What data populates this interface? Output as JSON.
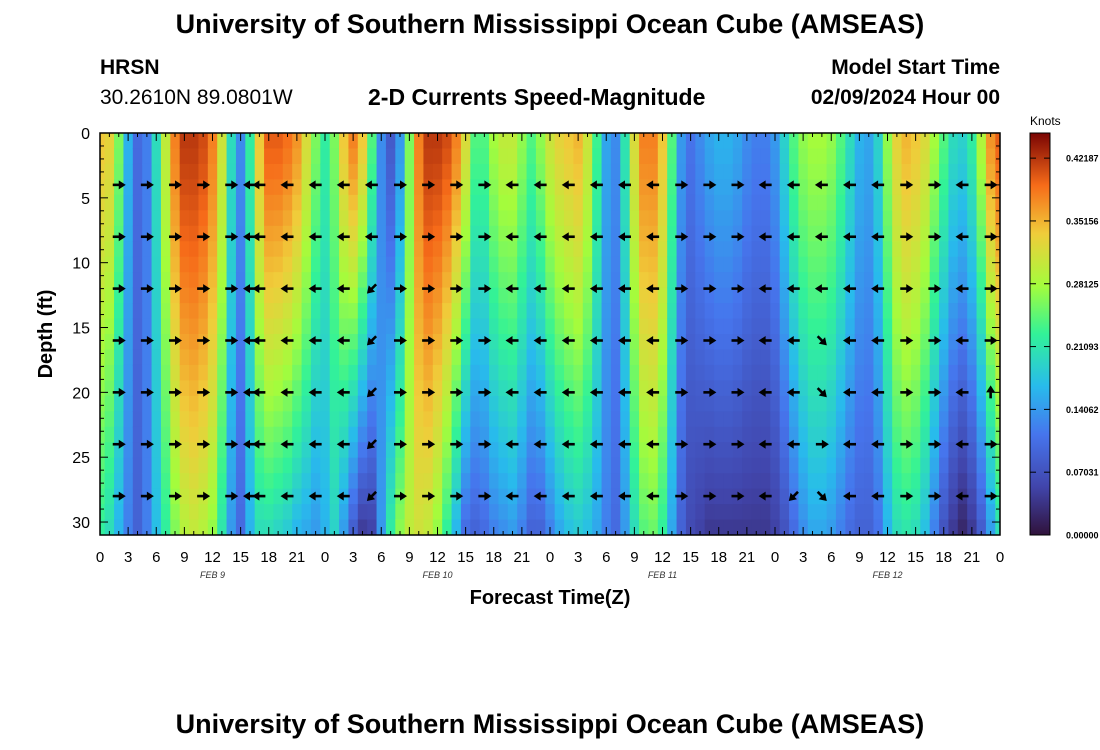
{
  "header": {
    "title": "University of Southern Mississippi Ocean Cube (AMSEAS)",
    "station": "HRSN",
    "coords": "30.2610N  89.0801W",
    "subtitle": "2-D Currents Speed-Magnitude",
    "model_start_label": "Model Start Time",
    "model_start_value": "02/09/2024 Hour 00"
  },
  "footer": {
    "title": "University of Southern Mississippi Ocean Cube (AMSEAS)"
  },
  "chart_data": {
    "type": "heatmap",
    "xlabel": "Forecast Time(Z)",
    "ylabel": "Depth (ft)",
    "x_range_hours": [
      0,
      96
    ],
    "ylim": [
      0,
      31
    ],
    "x_ticks": [
      "0",
      "3",
      "6",
      "9",
      "12",
      "15",
      "18",
      "21",
      "0",
      "3",
      "6",
      "9",
      "12",
      "15",
      "18",
      "21",
      "0",
      "3",
      "6",
      "9",
      "12",
      "15",
      "18",
      "21",
      "0",
      "3",
      "6",
      "9",
      "12",
      "15",
      "18",
      "21",
      "0"
    ],
    "day_labels": [
      {
        "label": "FEB 9",
        "hour": 12
      },
      {
        "label": "FEB 10",
        "hour": 36
      },
      {
        "label": "FEB 11",
        "hour": 60
      },
      {
        "label": "FEB 12",
        "hour": 84
      }
    ],
    "y_ticks": [
      0,
      5,
      10,
      15,
      20,
      25,
      30
    ],
    "colorbar": {
      "unit": "Knots",
      "min": 0,
      "max": 0.45,
      "ticks": [
        "0.42187",
        "0.35156",
        "0.28125",
        "0.21093",
        "0.14062",
        "0.07031",
        "0.00000"
      ]
    },
    "speed_profile": {
      "hours": [
        0,
        1,
        2,
        3,
        4,
        5,
        6,
        7,
        8,
        9,
        10,
        11,
        12,
        13,
        14,
        15,
        16,
        17,
        18,
        19,
        20,
        21,
        22,
        23,
        24,
        25,
        26,
        27,
        28,
        29,
        30,
        31,
        32,
        33,
        34,
        35,
        36,
        37,
        38,
        39,
        40,
        41,
        42,
        43,
        44,
        45,
        46,
        47,
        48,
        49,
        50,
        51,
        52,
        53,
        54,
        55,
        56,
        57,
        58,
        59,
        60,
        61,
        62,
        63,
        64,
        65,
        66,
        67,
        68,
        69,
        70,
        71,
        72,
        73,
        74,
        75,
        76,
        77,
        78,
        79,
        80,
        81,
        82,
        83,
        84,
        85,
        86,
        87,
        88,
        89,
        90,
        91,
        92,
        93,
        94,
        95,
        96
      ],
      "surface": [
        0.34,
        0.33,
        0.26,
        0.16,
        0.1,
        0.12,
        0.2,
        0.3,
        0.38,
        0.42,
        0.42,
        0.41,
        0.38,
        0.31,
        0.2,
        0.13,
        0.22,
        0.34,
        0.4,
        0.4,
        0.39,
        0.37,
        0.32,
        0.26,
        0.22,
        0.26,
        0.34,
        0.38,
        0.34,
        0.24,
        0.13,
        0.08,
        0.14,
        0.26,
        0.38,
        0.42,
        0.42,
        0.41,
        0.38,
        0.32,
        0.24,
        0.24,
        0.28,
        0.3,
        0.3,
        0.27,
        0.24,
        0.27,
        0.31,
        0.33,
        0.34,
        0.35,
        0.31,
        0.23,
        0.15,
        0.13,
        0.21,
        0.32,
        0.38,
        0.38,
        0.34,
        0.24,
        0.14,
        0.11,
        0.13,
        0.15,
        0.16,
        0.16,
        0.15,
        0.13,
        0.12,
        0.12,
        0.14,
        0.19,
        0.24,
        0.27,
        0.28,
        0.28,
        0.27,
        0.24,
        0.2,
        0.16,
        0.15,
        0.19,
        0.27,
        0.33,
        0.35,
        0.34,
        0.32,
        0.28,
        0.24,
        0.2,
        0.19,
        0.22,
        0.29,
        0.37,
        0.4
      ],
      "bottom": [
        0.22,
        0.2,
        0.16,
        0.12,
        0.09,
        0.12,
        0.17,
        0.22,
        0.26,
        0.29,
        0.3,
        0.29,
        0.27,
        0.21,
        0.14,
        0.1,
        0.16,
        0.2,
        0.2,
        0.19,
        0.18,
        0.16,
        0.15,
        0.14,
        0.16,
        0.19,
        0.14,
        0.08,
        0.04,
        0.05,
        0.14,
        0.22,
        0.27,
        0.3,
        0.31,
        0.3,
        0.27,
        0.22,
        0.16,
        0.1,
        0.09,
        0.1,
        0.12,
        0.13,
        0.14,
        0.12,
        0.09,
        0.09,
        0.12,
        0.15,
        0.17,
        0.18,
        0.17,
        0.15,
        0.12,
        0.1,
        0.14,
        0.2,
        0.24,
        0.25,
        0.22,
        0.15,
        0.09,
        0.06,
        0.05,
        0.04,
        0.04,
        0.04,
        0.04,
        0.04,
        0.04,
        0.04,
        0.05,
        0.07,
        0.1,
        0.13,
        0.15,
        0.15,
        0.14,
        0.12,
        0.1,
        0.09,
        0.09,
        0.11,
        0.16,
        0.2,
        0.21,
        0.2,
        0.17,
        0.12,
        0.07,
        0.04,
        0.02,
        0.04,
        0.08,
        0.14,
        0.2
      ]
    },
    "arrows": {
      "depths_ft": [
        4,
        8,
        12,
        16,
        20,
        24,
        28
      ],
      "hours": [
        2,
        5,
        8,
        11,
        14,
        16,
        17,
        20,
        23,
        26,
        29,
        32,
        35,
        38,
        41,
        44,
        47,
        50,
        53,
        56,
        59,
        62,
        65,
        68,
        71,
        74,
        77,
        80,
        83,
        86,
        89,
        92,
        95
      ],
      "default_direction": "west",
      "rows": [
        {
          "depth": 4,
          "dirs": [
            "e",
            "e",
            "e",
            "e",
            "e",
            "w",
            "w",
            "w",
            "w",
            "w",
            "w",
            "e",
            "e",
            "e",
            "e",
            "w",
            "w",
            "w",
            "w",
            "w",
            "w",
            "e",
            "e",
            "e",
            "w",
            "w",
            "w",
            "w",
            "w",
            "e",
            "e",
            "w",
            "e"
          ]
        },
        {
          "depth": 8,
          "dirs": [
            "e",
            "e",
            "e",
            "e",
            "e",
            "w",
            "w",
            "w",
            "w",
            "w",
            "w",
            "e",
            "e",
            "e",
            "e",
            "w",
            "w",
            "w",
            "w",
            "w",
            "w",
            "e",
            "e",
            "e",
            "w",
            "w",
            "w",
            "w",
            "w",
            "e",
            "e",
            "w",
            "e"
          ]
        },
        {
          "depth": 12,
          "dirs": [
            "e",
            "e",
            "e",
            "e",
            "e",
            "w",
            "w",
            "w",
            "w",
            "w",
            "sw",
            "e",
            "e",
            "e",
            "e",
            "w",
            "w",
            "w",
            "w",
            "w",
            "w",
            "e",
            "e",
            "e",
            "w",
            "w",
            "w",
            "w",
            "w",
            "e",
            "e",
            "w",
            "e"
          ]
        },
        {
          "depth": 16,
          "dirs": [
            "e",
            "e",
            "e",
            "e",
            "e",
            "w",
            "w",
            "w",
            "w",
            "w",
            "sw",
            "e",
            "e",
            "e",
            "e",
            "w",
            "w",
            "w",
            "w",
            "w",
            "w",
            "e",
            "e",
            "e",
            "w",
            "w",
            "se",
            "w",
            "w",
            "e",
            "e",
            "w",
            "e"
          ]
        },
        {
          "depth": 20,
          "dirs": [
            "e",
            "e",
            "e",
            "e",
            "e",
            "w",
            "w",
            "w",
            "w",
            "w",
            "sw",
            "e",
            "e",
            "e",
            "e",
            "w",
            "w",
            "w",
            "w",
            "w",
            "w",
            "e",
            "e",
            "e",
            "w",
            "w",
            "se",
            "w",
            "w",
            "e",
            "e",
            "w",
            "n"
          ]
        },
        {
          "depth": 24,
          "dirs": [
            "e",
            "e",
            "e",
            "e",
            "e",
            "w",
            "w",
            "w",
            "w",
            "w",
            "sw",
            "e",
            "e",
            "e",
            "e",
            "w",
            "w",
            "w",
            "w",
            "w",
            "w",
            "e",
            "e",
            "e",
            "w",
            "w",
            "e",
            "w",
            "w",
            "e",
            "e",
            "w",
            "e"
          ]
        },
        {
          "depth": 28,
          "dirs": [
            "e",
            "e",
            "e",
            "e",
            "e",
            "w",
            "w",
            "w",
            "w",
            "w",
            "sw",
            "e",
            "e",
            "e",
            "e",
            "w",
            "w",
            "w",
            "w",
            "w",
            "w",
            "e",
            "e",
            "e",
            "w",
            "sw",
            "se",
            "w",
            "w",
            "e",
            "e",
            "w",
            "e"
          ]
        }
      ]
    }
  }
}
